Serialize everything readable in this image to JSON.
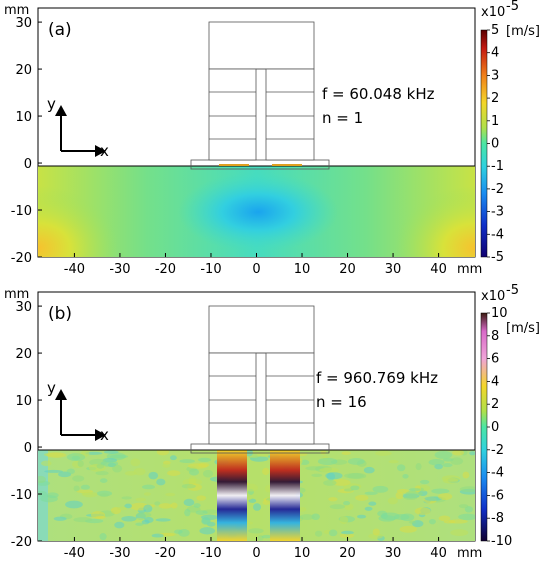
{
  "chart_data": [
    {
      "type": "heatmap",
      "panel_label": "(a)",
      "frequency_text": "f = 60.048 kHz",
      "mode_text": "n = 1",
      "x_unit": "mm",
      "y_unit": "mm",
      "x_ticks": [
        "-40",
        "-30",
        "-20",
        "-10",
        "0",
        "10",
        "20",
        "30",
        "40"
      ],
      "y_ticks": [
        "30",
        "20",
        "10",
        "0",
        "-10",
        "-20"
      ],
      "xlim": [
        -48,
        48
      ],
      "ylim": [
        -20,
        33
      ],
      "colorbar": {
        "exponent": "x10",
        "exponent_power": "-5",
        "unit": "[m/s]",
        "ticks": [
          "5",
          "4",
          "3",
          "2",
          "1",
          "0",
          "-1",
          "-2",
          "-3",
          "-4",
          "-5"
        ],
        "range": [
          -5,
          5
        ]
      },
      "axis_arrows": {
        "y": "y",
        "x": "x"
      }
    },
    {
      "type": "heatmap",
      "panel_label": "(b)",
      "frequency_text": "f = 960.769 kHz",
      "mode_text": "n = 16",
      "x_unit": "mm",
      "y_unit": "mm",
      "x_ticks": [
        "-40",
        "-30",
        "-20",
        "-10",
        "0",
        "10",
        "20",
        "30",
        "40"
      ],
      "y_ticks": [
        "30",
        "20",
        "10",
        "0",
        "-10",
        "-20"
      ],
      "xlim": [
        -48,
        48
      ],
      "ylim": [
        -20,
        33
      ],
      "colorbar": {
        "exponent": "x10",
        "exponent_power": "-5",
        "unit": "[m/s]",
        "ticks": [
          "10",
          "8",
          "6",
          "4",
          "2",
          "0",
          "-2",
          "-4",
          "-6",
          "-8",
          "-10"
        ],
        "range": [
          -10,
          10
        ]
      },
      "axis_arrows": {
        "y": "y",
        "x": "x"
      }
    }
  ]
}
